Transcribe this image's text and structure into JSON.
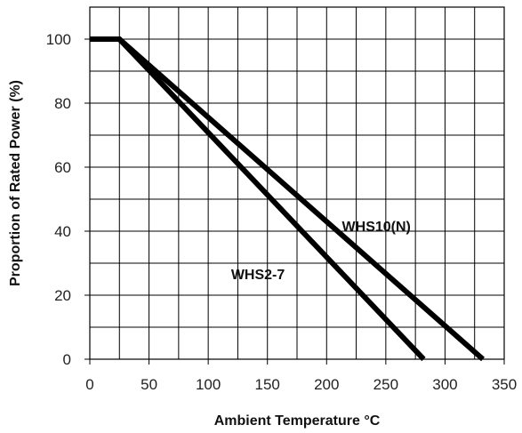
{
  "chart_data": {
    "type": "line",
    "title": "",
    "xlabel": "Ambient Temperature °C",
    "ylabel": "Proportion of Rated Power (%)",
    "xlim": [
      0,
      350
    ],
    "ylim": [
      0,
      110
    ],
    "x_ticks": [
      0,
      50,
      100,
      150,
      200,
      250,
      300,
      350
    ],
    "y_ticks": [
      0,
      20,
      40,
      60,
      80,
      100
    ],
    "grid": true,
    "series": [
      {
        "name": "WHS2-7",
        "x": [
          0,
          25,
          282
        ],
        "y": [
          100,
          100,
          0
        ]
      },
      {
        "name": "WHS10(N)",
        "x": [
          0,
          25,
          332
        ],
        "y": [
          100,
          100,
          0
        ]
      }
    ],
    "annotations": [
      {
        "text": "WHS10(N)",
        "x": 242,
        "y": 40
      },
      {
        "text": "WHS2-7",
        "x": 142,
        "y": 25
      }
    ],
    "colors": {
      "line": "#000000",
      "grid": "#000000",
      "text": "#222222"
    }
  }
}
